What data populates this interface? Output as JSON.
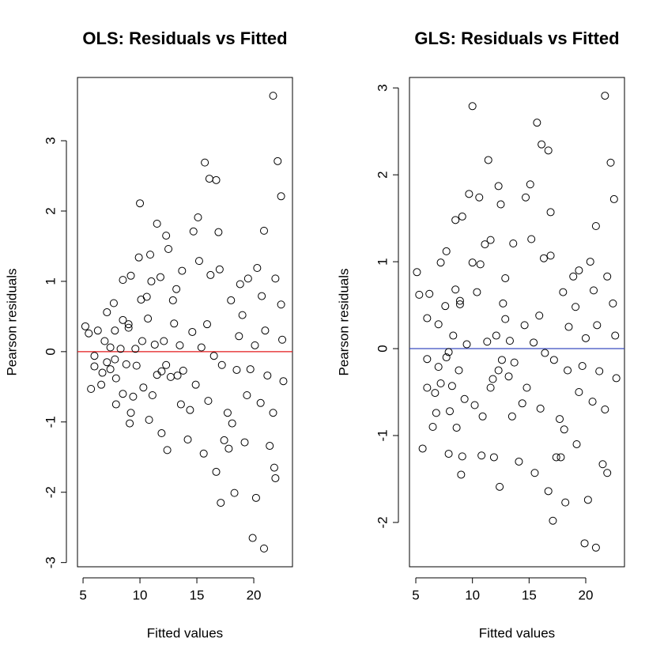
{
  "chart_data": [
    {
      "type": "scatter",
      "title": "OLS: Residuals vs Fitted",
      "x_label": "Fitted values",
      "y_label": "Pearson residuals",
      "xlim": [
        4.51,
        23.4
      ],
      "ylim": [
        -3.06,
        3.9
      ],
      "xticks": [
        5,
        10,
        15,
        20
      ],
      "yticks": [
        -3,
        -2,
        -1,
        0,
        1,
        2,
        3
      ],
      "point_color": "#000000",
      "reference_line": 0,
      "reference_color": "#e41a1c",
      "x": [
        5.2,
        5.5,
        5.7,
        6.0,
        6.0,
        6.3,
        6.6,
        6.7,
        6.9,
        7.1,
        7.1,
        7.4,
        7.4,
        7.7,
        7.8,
        7.8,
        7.9,
        7.9,
        8.3,
        8.5,
        8.5,
        8.5,
        8.8,
        9.0,
        9.0,
        9.2,
        9.1,
        9.2,
        9.4,
        9.6,
        9.7,
        9.9,
        10.0,
        10.1,
        10.2,
        10.3,
        10.6,
        10.7,
        10.8,
        10.9,
        11.0,
        11.1,
        11.3,
        11.5,
        11.5,
        11.8,
        11.9,
        11.9,
        12.1,
        12.3,
        12.3,
        12.4,
        12.5,
        12.7,
        12.9,
        13.0,
        13.2,
        13.3,
        13.5,
        13.6,
        13.7,
        13.8,
        14.2,
        14.4,
        14.6,
        14.7,
        14.9,
        15.1,
        15.2,
        15.4,
        15.6,
        15.7,
        15.9,
        16.0,
        16.1,
        16.2,
        16.5,
        16.7,
        16.7,
        16.9,
        17.0,
        17.1,
        17.2,
        17.4,
        17.7,
        17.8,
        18.0,
        18.1,
        18.3,
        18.5,
        18.7,
        18.8,
        19.0,
        19.2,
        19.4,
        19.5,
        19.7,
        19.9,
        20.1,
        20.2,
        20.3,
        20.6,
        20.7,
        20.9,
        20.9,
        21.0,
        21.2,
        21.4,
        21.7,
        21.7,
        21.8,
        21.9,
        21.9,
        22.1,
        22.4,
        22.4,
        22.5,
        22.6
      ],
      "values": [
        0.36,
        0.26,
        -0.53,
        -0.06,
        -0.21,
        0.3,
        -0.47,
        -0.3,
        0.15,
        0.56,
        -0.15,
        0.06,
        -0.25,
        0.69,
        0.3,
        -0.11,
        -0.38,
        -0.75,
        0.04,
        0.45,
        1.02,
        -0.6,
        -0.18,
        0.39,
        0.34,
        -0.87,
        -1.02,
        1.08,
        -0.64,
        0.04,
        -0.2,
        1.34,
        2.11,
        0.74,
        0.15,
        -0.51,
        0.78,
        0.47,
        -0.97,
        1.38,
        1.0,
        -0.62,
        0.1,
        1.82,
        -0.33,
        1.06,
        -0.28,
        -1.16,
        0.15,
        1.65,
        -0.19,
        -1.4,
        1.46,
        -0.36,
        0.73,
        0.4,
        0.89,
        -0.34,
        0.09,
        -0.75,
        1.15,
        -0.27,
        -1.25,
        -0.83,
        0.28,
        1.71,
        -0.47,
        1.91,
        1.29,
        0.06,
        -1.45,
        2.69,
        0.39,
        -0.7,
        2.46,
        1.09,
        -0.06,
        2.44,
        -1.71,
        1.7,
        1.17,
        -2.15,
        -0.19,
        -1.26,
        -0.87,
        -1.38,
        0.73,
        -1.02,
        -2.01,
        -0.26,
        0.22,
        0.96,
        0.52,
        -1.29,
        -0.62,
        1.04,
        -0.25,
        -2.65,
        0.09,
        -2.08,
        1.19,
        -0.73,
        0.79,
        1.72,
        -2.8,
        0.3,
        -0.34,
        -1.34,
        3.64,
        -0.87,
        -1.65,
        1.04,
        -1.8,
        2.71,
        0.67,
        2.21,
        0.17,
        -0.42
      ]
    },
    {
      "type": "scatter",
      "title": "GLS: Residuals vs Fitted",
      "x_label": "Fitted values",
      "y_label": "Pearson residuals",
      "xlim": [
        4.44,
        23.42
      ],
      "ylim": [
        -2.51,
        3.12
      ],
      "xticks": [
        5,
        10,
        15,
        20
      ],
      "yticks": [
        -2,
        -1,
        0,
        1,
        2,
        3
      ],
      "point_color": "#000000",
      "reference_line": 0,
      "reference_color": "#3b4cc0",
      "x": [
        5.1,
        5.3,
        5.6,
        6.0,
        6.2,
        6.0,
        6.0,
        6.5,
        6.7,
        6.8,
        7.0,
        7.0,
        7.2,
        7.2,
        7.6,
        7.7,
        7.7,
        7.9,
        7.9,
        8.0,
        8.2,
        8.3,
        8.5,
        8.5,
        8.6,
        8.8,
        8.9,
        8.9,
        9.1,
        9.1,
        9.0,
        9.3,
        9.5,
        9.7,
        10.0,
        10.0,
        10.2,
        10.4,
        10.6,
        10.7,
        10.8,
        10.9,
        11.1,
        11.3,
        11.4,
        11.6,
        11.6,
        11.8,
        11.9,
        12.1,
        12.3,
        12.3,
        12.4,
        12.5,
        12.6,
        12.7,
        12.9,
        12.9,
        13.2,
        13.3,
        13.5,
        13.6,
        13.7,
        14.1,
        14.4,
        14.6,
        14.7,
        14.8,
        15.1,
        15.2,
        15.4,
        15.5,
        15.7,
        15.9,
        16.0,
        16.1,
        16.3,
        16.4,
        16.7,
        16.7,
        16.9,
        16.9,
        17.1,
        17.2,
        17.4,
        17.7,
        17.8,
        18.0,
        18.1,
        18.2,
        18.4,
        18.5,
        18.9,
        19.1,
        19.2,
        19.4,
        19.4,
        19.7,
        19.9,
        20.0,
        20.2,
        20.4,
        20.6,
        20.7,
        20.9,
        20.9,
        21.0,
        21.2,
        21.5,
        21.7,
        21.7,
        21.9,
        21.9,
        22.2,
        22.4,
        22.5,
        22.6,
        22.7
      ],
      "values": [
        0.88,
        0.62,
        -1.15,
        0.35,
        0.63,
        -0.12,
        -0.45,
        -0.9,
        -0.51,
        -0.74,
        0.28,
        -0.21,
        0.99,
        -0.4,
        0.49,
        1.12,
        -0.1,
        -0.04,
        -1.21,
        -0.72,
        -0.43,
        0.15,
        1.48,
        0.68,
        -0.91,
        -0.25,
        0.55,
        0.51,
        1.52,
        -1.24,
        -1.45,
        -0.58,
        0.05,
        1.78,
        2.79,
        0.99,
        -0.65,
        0.65,
        1.74,
        0.97,
        -1.23,
        -0.78,
        1.2,
        0.08,
        2.17,
        -0.45,
        1.25,
        -0.35,
        -1.25,
        0.15,
        1.87,
        -0.25,
        -1.59,
        1.66,
        -0.13,
        0.52,
        0.81,
        0.34,
        -0.32,
        0.09,
        -0.78,
        1.21,
        -0.16,
        -1.3,
        -0.63,
        0.27,
        1.74,
        -0.45,
        1.89,
        1.26,
        0.07,
        -1.43,
        2.6,
        0.38,
        -0.69,
        2.35,
        1.04,
        -0.05,
        2.28,
        -1.64,
        1.57,
        1.07,
        -1.98,
        -0.13,
        -1.25,
        -0.81,
        -1.25,
        0.65,
        -0.93,
        -1.77,
        -0.25,
        0.25,
        0.83,
        0.48,
        -1.1,
        -0.5,
        0.9,
        -0.2,
        -2.24,
        0.12,
        -1.74,
        1.0,
        -0.61,
        0.67,
        1.41,
        -2.29,
        0.27,
        -0.26,
        -1.33,
        2.91,
        -0.7,
        -1.43,
        0.83,
        2.14,
        0.52,
        1.72,
        0.15,
        -0.34
      ]
    }
  ]
}
